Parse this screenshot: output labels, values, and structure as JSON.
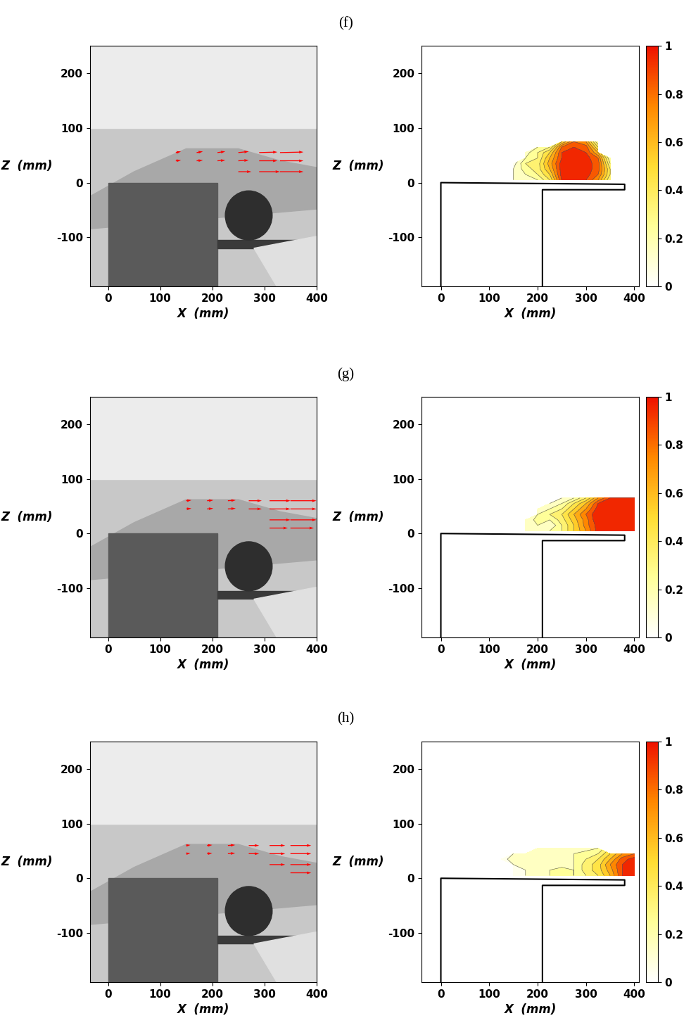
{
  "chart_data": [
    {
      "type": "panel",
      "title": "(f)",
      "charts": [
        {
          "type": "image",
          "xlabel": "X  (mm)",
          "ylabel": "Z  (mm)",
          "xlim": [
            -35,
            400
          ],
          "ylim": [
            -190,
            250
          ],
          "xticks": [
            0,
            100,
            200,
            300,
            400
          ],
          "yticks": [
            -100,
            0,
            100,
            200
          ],
          "color": "#ff0000",
          "vectors": {
            "x": [
              130,
              170,
              210,
              250,
              290,
              330,
              130,
              170,
              210,
              250,
              290,
              330,
              250,
              290,
              330
            ],
            "z": [
              40,
              40,
              40,
              40,
              40,
              40,
              55,
              55,
              55,
              55,
              55,
              55,
              20,
              20,
              20
            ],
            "u": [
              10,
              12,
              15,
              20,
              35,
              45,
              10,
              12,
              15,
              20,
              35,
              45,
              25,
              40,
              45
            ],
            "v": [
              1,
              1,
              1,
              1,
              0,
              0,
              2,
              2,
              2,
              2,
              1,
              1,
              0,
              0,
              0
            ]
          }
        },
        {
          "type": "contour",
          "xlabel": "X  (mm)",
          "ylabel": "Z  (mm)",
          "xlim": [
            -40,
            410
          ],
          "ylim": [
            -190,
            250
          ],
          "xticks": [
            0,
            100,
            200,
            300,
            400
          ],
          "yticks": [
            -100,
            0,
            100,
            200
          ],
          "x": [
            100,
            125,
            150,
            175,
            200,
            225,
            250,
            275,
            300,
            325,
            350,
            375,
            400
          ],
          "z": [
            5,
            15,
            25,
            35,
            45,
            55,
            65,
            75,
            85
          ],
          "cells": [
            [
              null,
              null,
              0.1,
              0.15,
              0.2,
              0.4,
              0.9,
              0.95,
              0.9,
              0.7,
              0.3,
              null,
              null
            ],
            [
              null,
              null,
              0.1,
              0.2,
              0.3,
              0.5,
              0.95,
              1.0,
              0.95,
              0.8,
              0.4,
              null,
              null
            ],
            [
              null,
              null,
              0.1,
              0.25,
              0.35,
              0.6,
              0.95,
              1.0,
              0.95,
              0.85,
              0.4,
              null,
              null
            ],
            [
              null,
              null,
              0.05,
              0.3,
              0.35,
              0.65,
              0.95,
              1.0,
              0.95,
              0.85,
              0.3,
              null,
              null
            ],
            [
              null,
              null,
              null,
              0.2,
              0.3,
              0.6,
              0.9,
              1.0,
              0.95,
              0.8,
              0.2,
              null,
              null
            ],
            [
              null,
              null,
              null,
              0.15,
              0.3,
              0.5,
              0.9,
              0.95,
              0.9,
              0.6,
              null,
              null,
              null
            ],
            [
              null,
              null,
              null,
              null,
              0.2,
              0.3,
              0.8,
              0.9,
              0.85,
              0.4,
              null,
              null,
              null
            ],
            [
              null,
              null,
              null,
              null,
              null,
              null,
              0.5,
              0.8,
              0.7,
              0.2,
              null,
              null,
              null
            ],
            [
              null,
              null,
              null,
              null,
              null,
              null,
              null,
              null,
              null,
              null,
              null,
              null,
              null
            ]
          ],
          "colorbar": {
            "lim": [
              0,
              1
            ],
            "ticks": [
              0,
              0.2,
              0.4,
              0.6,
              0.8,
              1
            ]
          }
        }
      ]
    },
    {
      "type": "panel",
      "title": "(g)",
      "charts": [
        {
          "type": "image",
          "xlabel": "X  (mm)",
          "ylabel": "Z  (mm)",
          "xlim": [
            -35,
            400
          ],
          "ylim": [
            -190,
            250
          ],
          "xticks": [
            0,
            100,
            200,
            300,
            400
          ],
          "yticks": [
            -100,
            0,
            100,
            200
          ],
          "color": "#ff0000",
          "vectors": {
            "x": [
              150,
              190,
              230,
              270,
              310,
              350,
              150,
              190,
              230,
              270,
              310,
              350,
              310,
              350,
              310,
              350
            ],
            "z": [
              45,
              45,
              45,
              45,
              45,
              45,
              60,
              60,
              60,
              60,
              60,
              60,
              25,
              25,
              10,
              10
            ],
            "u": [
              10,
              12,
              15,
              25,
              40,
              50,
              10,
              12,
              15,
              25,
              40,
              50,
              40,
              50,
              35,
              45
            ],
            "v": [
              1,
              1,
              1,
              0,
              0,
              0,
              1,
              1,
              1,
              0,
              0,
              0,
              0,
              0,
              0,
              0
            ]
          }
        },
        {
          "type": "contour",
          "xlabel": "X  (mm)",
          "ylabel": "Z  (mm)",
          "xlim": [
            -40,
            410
          ],
          "ylim": [
            -190,
            250
          ],
          "xticks": [
            0,
            100,
            200,
            300,
            400
          ],
          "yticks": [
            -100,
            0,
            100,
            200
          ],
          "x": [
            100,
            125,
            150,
            175,
            200,
            225,
            250,
            275,
            300,
            325,
            350,
            375,
            400
          ],
          "z": [
            5,
            15,
            25,
            35,
            45,
            55,
            65,
            75,
            85
          ],
          "cells": [
            [
              null,
              null,
              null,
              0.1,
              0.2,
              0.2,
              0.3,
              0.5,
              0.7,
              0.95,
              1.0,
              1.0,
              1.0
            ],
            [
              null,
              null,
              null,
              0.15,
              0.2,
              0.1,
              0.3,
              0.5,
              0.75,
              0.95,
              1.0,
              1.0,
              1.0
            ],
            [
              null,
              null,
              null,
              0.1,
              0.25,
              0.2,
              0.35,
              0.55,
              0.75,
              1.0,
              1.0,
              1.0,
              1.0
            ],
            [
              null,
              null,
              null,
              null,
              0.2,
              0.3,
              0.4,
              0.6,
              0.8,
              1.0,
              1.0,
              1.0,
              1.0
            ],
            [
              null,
              null,
              null,
              null,
              0.15,
              0.2,
              0.3,
              0.5,
              0.7,
              0.95,
              1.0,
              1.0,
              1.0
            ],
            [
              null,
              null,
              null,
              null,
              null,
              0.1,
              0.2,
              0.4,
              0.6,
              0.9,
              1.0,
              1.0,
              1.0
            ],
            [
              null,
              null,
              null,
              null,
              null,
              null,
              0.1,
              0.2,
              0.4,
              0.7,
              0.9,
              0.9,
              0.9
            ],
            [
              null,
              null,
              null,
              null,
              null,
              null,
              null,
              null,
              null,
              null,
              null,
              null,
              null
            ],
            [
              null,
              null,
              null,
              null,
              null,
              null,
              null,
              null,
              null,
              null,
              null,
              null,
              null
            ]
          ],
          "colorbar": {
            "lim": [
              0,
              1
            ],
            "ticks": [
              0,
              0.2,
              0.4,
              0.6,
              0.8,
              1
            ]
          }
        }
      ]
    },
    {
      "type": "panel",
      "title": "(h)",
      "charts": [
        {
          "type": "image",
          "xlabel": "X  (mm)",
          "ylabel": "Z  (mm)",
          "xlim": [
            -35,
            400
          ],
          "ylim": [
            -190,
            250
          ],
          "xticks": [
            0,
            100,
            200,
            300,
            400
          ],
          "yticks": [
            -100,
            0,
            100,
            200
          ],
          "color": "#ff0000",
          "vectors": {
            "x": [
              150,
              190,
              230,
              270,
              310,
              350,
              150,
              190,
              230,
              270,
              310,
              350,
              310,
              350,
              350
            ],
            "z": [
              45,
              45,
              45,
              45,
              45,
              45,
              60,
              60,
              60,
              60,
              60,
              60,
              25,
              25,
              10
            ],
            "u": [
              8,
              10,
              14,
              20,
              30,
              40,
              8,
              10,
              14,
              20,
              30,
              40,
              30,
              40,
              40
            ],
            "v": [
              1,
              1,
              1,
              0,
              0,
              0,
              1,
              1,
              1,
              0,
              0,
              0,
              0,
              0,
              0
            ]
          }
        },
        {
          "type": "contour",
          "xlabel": "X  (mm)",
          "ylabel": "Z  (mm)",
          "xlim": [
            -40,
            410
          ],
          "ylim": [
            -190,
            250
          ],
          "xticks": [
            0,
            100,
            200,
            300,
            400
          ],
          "yticks": [
            -100,
            0,
            100,
            200
          ],
          "x": [
            100,
            125,
            150,
            175,
            200,
            225,
            250,
            275,
            300,
            325,
            350,
            375,
            400
          ],
          "z": [
            5,
            15,
            25,
            35,
            45,
            55,
            65,
            75,
            85
          ],
          "cells": [
            [
              null,
              null,
              0.05,
              0.1,
              0.15,
              0.2,
              0.3,
              0.2,
              0.3,
              0.4,
              0.6,
              0.9,
              1.0
            ],
            [
              null,
              null,
              0.1,
              0.1,
              0.15,
              0.2,
              0.3,
              0.2,
              0.35,
              0.45,
              0.65,
              0.9,
              1.0
            ],
            [
              null,
              null,
              0.1,
              0.15,
              0.15,
              0.15,
              0.1,
              0.2,
              0.35,
              0.45,
              0.7,
              0.9,
              1.0
            ],
            [
              null,
              0.05,
              0.15,
              0.15,
              0.2,
              0.2,
              0.15,
              0.2,
              0.3,
              0.4,
              0.6,
              0.85,
              0.95
            ],
            [
              null,
              null,
              0.1,
              0.15,
              0.15,
              0.2,
              0.2,
              0.2,
              0.25,
              0.3,
              0.5,
              0.7,
              0.8
            ],
            [
              null,
              null,
              null,
              null,
              0.1,
              0.15,
              0.15,
              0.15,
              0.15,
              0.2,
              null,
              null,
              null
            ],
            [
              null,
              null,
              null,
              null,
              null,
              null,
              null,
              null,
              null,
              null,
              null,
              null,
              null
            ],
            [
              null,
              null,
              null,
              null,
              null,
              null,
              null,
              null,
              null,
              null,
              null,
              null,
              null
            ],
            [
              null,
              null,
              null,
              null,
              null,
              null,
              null,
              null,
              null,
              null,
              null,
              null,
              null
            ]
          ],
          "colorbar": {
            "lim": [
              0,
              1
            ],
            "ticks": [
              0,
              0.2,
              0.4,
              0.6,
              0.8,
              1
            ]
          }
        }
      ]
    }
  ]
}
